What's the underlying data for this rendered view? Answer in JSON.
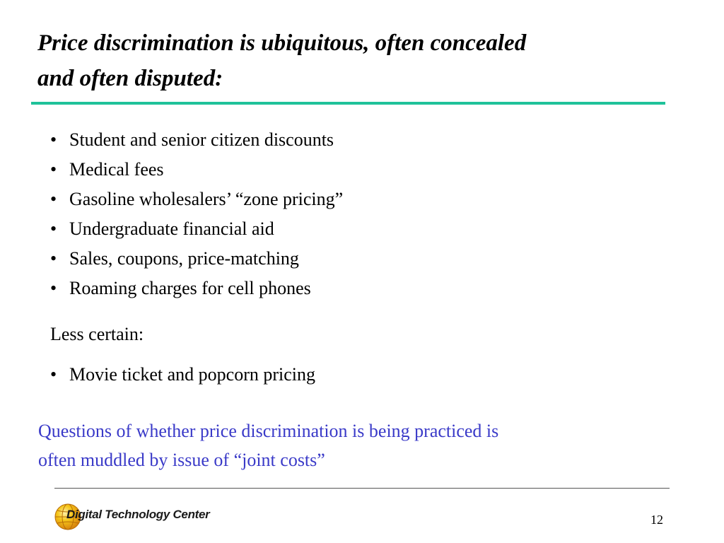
{
  "slide": {
    "title_line1": "Price discrimination is ubiquitous, often concealed",
    "title_line2": "and often disputed:",
    "bullet_char": "•",
    "bullets": [
      "Student and senior citizen discounts",
      "Medical fees",
      "Gasoline wholesalers’ “zone pricing”",
      "Undergraduate financial aid",
      "Sales, coupons, price-matching",
      "Roaming charges for cell phones"
    ],
    "less_certain_label": "Less certain:",
    "less_certain_bullets": [
      "Movie ticket and popcorn pricing"
    ],
    "note_line1": "Questions of whether price discrimination is being practiced is",
    "note_line2": "often muddled by issue of “joint costs”"
  },
  "footer": {
    "logo_text": "Digital Technology Center",
    "page_number": "12"
  },
  "colors": {
    "title_rule": "#1fc29a",
    "note_text": "#3a3ac8",
    "logo_globe_outer": "#d8860e",
    "logo_globe_inner": "#f5c518"
  },
  "icons": {
    "logo": "globe-icon"
  }
}
